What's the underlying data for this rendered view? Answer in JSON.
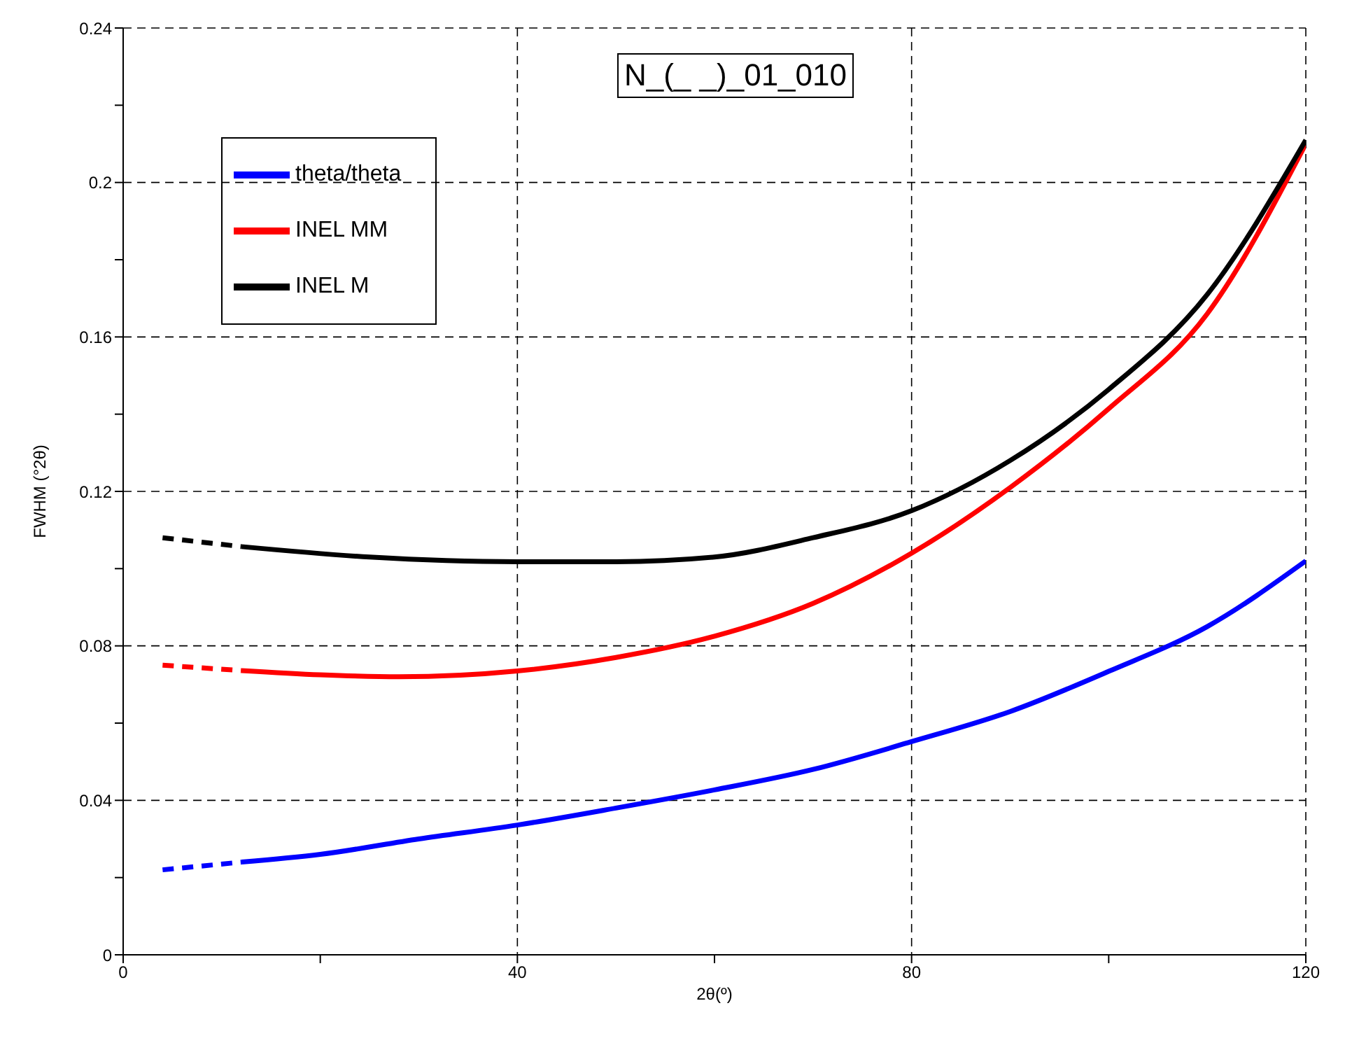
{
  "chart_data": {
    "type": "line",
    "title": "N_(_ _)_01_010",
    "xlabel": "2θ(º)",
    "ylabel": "FWHM (°2θ)",
    "xlim": [
      0,
      120
    ],
    "xticks": [
      0,
      {
        "value": 20,
        "label": null
      },
      40,
      {
        "value": 60,
        "label": null
      },
      80,
      {
        "value": 100,
        "label": null
      },
      120
    ],
    "ylim": [
      0,
      0.24
    ],
    "yticks": [
      0,
      {
        "value": 0.02,
        "label": null
      },
      0.04,
      {
        "value": 0.06,
        "label": null
      },
      0.08,
      {
        "value": 0.1,
        "label": null
      },
      0.12,
      {
        "value": 0.14,
        "label": null
      },
      0.16,
      {
        "value": 0.18,
        "label": null
      },
      0.2,
      {
        "value": 0.22,
        "label": null
      },
      0.24
    ],
    "grid": true,
    "legend": "top left",
    "marker": "none",
    "series": [
      {
        "color": "#0000ff",
        "line_style": "dashed",
        "x": [
          4,
          12
        ],
        "values": [
          0.022,
          0.024
        ]
      },
      {
        "name": "theta/theta",
        "color": "#0000ff",
        "line_style": "solid",
        "x": [
          12,
          20,
          30,
          40,
          50,
          60,
          70,
          80,
          90,
          100,
          110,
          120
        ],
        "values": [
          0.024,
          0.026,
          0.03,
          0.0336,
          0.038,
          0.0427,
          0.048,
          0.0552,
          0.063,
          0.0734,
          0.085,
          0.102
        ]
      },
      {
        "color": "#ff0000",
        "line_style": "dashed",
        "x": [
          4,
          12
        ],
        "values": [
          0.075,
          0.0736
        ]
      },
      {
        "name": "INEL MM",
        "color": "#ff0000",
        "line_style": "solid",
        "x": [
          12,
          20,
          28,
          40,
          50,
          60,
          70,
          80,
          90,
          100,
          110,
          120
        ],
        "values": [
          0.0736,
          0.0725,
          0.072,
          0.0735,
          0.077,
          0.0825,
          0.091,
          0.104,
          0.121,
          0.1414,
          0.166,
          0.21
        ]
      },
      {
        "color": "#000000",
        "line_style": "dashed",
        "x": [
          4,
          12
        ],
        "values": [
          0.108,
          0.1057
        ]
      },
      {
        "name": "INEL M",
        "color": "#000000",
        "line_style": "solid",
        "x": [
          12,
          25,
          40,
          50,
          60,
          70,
          80,
          90,
          100,
          110,
          120
        ],
        "values": [
          0.1057,
          0.103,
          0.1018,
          0.1018,
          0.103,
          0.108,
          0.115,
          0.128,
          0.1464,
          0.171,
          0.211
        ]
      }
    ]
  }
}
